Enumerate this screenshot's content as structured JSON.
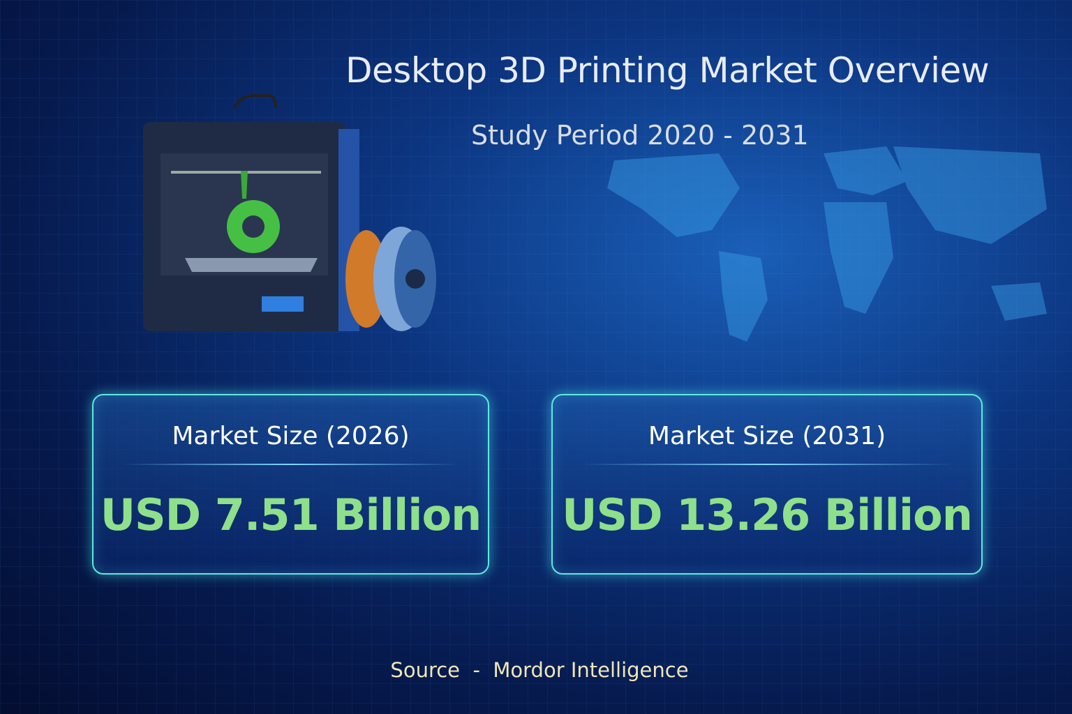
{
  "header": {
    "title": "Desktop 3D Printing Market Overview",
    "subtitle": "Study Period 2020 - 2031"
  },
  "cards": [
    {
      "label": "Market Size (2026)",
      "value": "USD 7.51 Billion"
    },
    {
      "label": "Market Size (2031)",
      "value": "USD 13.26 Billion"
    }
  ],
  "footer": {
    "source": "Source  -  Mordor Intelligence"
  },
  "colors": {
    "value_green": "#8fe08a",
    "card_border": "#5fe8e0",
    "background": "#0c3580",
    "source_text": "#f0e6b8"
  },
  "icons": [
    "3d-printer-illustration",
    "filament-spool-icon",
    "world-map-graphic"
  ]
}
